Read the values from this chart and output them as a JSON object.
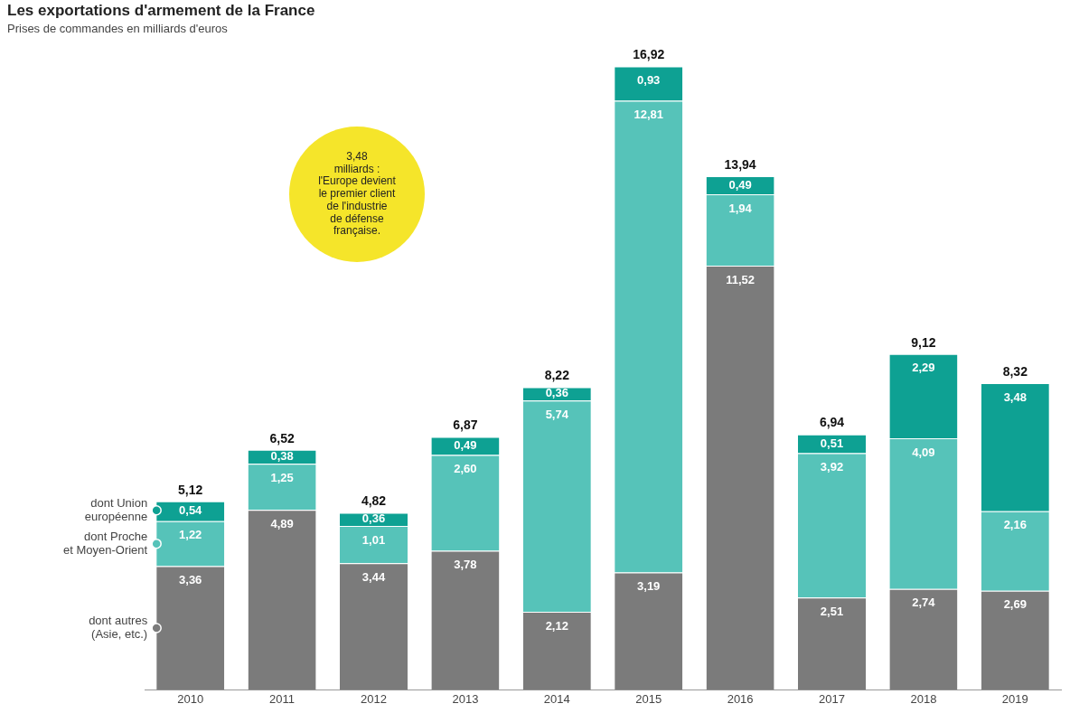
{
  "chart_data": {
    "type": "bar",
    "title": "Les exportations d'armement de la France",
    "subtitle": "Prises de commandes en milliards d'euros",
    "categories": [
      "2010",
      "2011",
      "2012",
      "2013",
      "2014",
      "2015",
      "2016",
      "2017",
      "2018",
      "2019"
    ],
    "stacked": true,
    "legend": "left",
    "grid": false,
    "series": [
      {
        "name": "dont autres\n(Asie, etc.)",
        "color": "#7b7b7b",
        "values": [
          3.36,
          4.89,
          3.44,
          3.78,
          2.12,
          3.19,
          11.52,
          2.51,
          2.74,
          2.69
        ],
        "value_labels": [
          "3,36",
          "4,89",
          "3,44",
          "3,78",
          "2,12",
          "3,19",
          "11,52",
          "2,51",
          "2,74",
          "2,69"
        ]
      },
      {
        "name": "dont Proche\net Moyen-Orient",
        "color": "#56c3b9",
        "values": [
          1.22,
          1.25,
          1.01,
          2.6,
          5.74,
          12.81,
          1.94,
          3.92,
          4.09,
          2.16
        ],
        "value_labels": [
          "1,22",
          "1,25",
          "1,01",
          "2,60",
          "5,74",
          "12,81",
          "1,94",
          "3,92",
          "4,09",
          "2,16"
        ]
      },
      {
        "name": "dont Union\neuropéenne",
        "color": "#0ea193",
        "values": [
          0.54,
          0.38,
          0.36,
          0.49,
          0.36,
          0.93,
          0.49,
          0.51,
          2.29,
          3.48
        ],
        "value_labels": [
          "0,54",
          "0,38",
          "0,36",
          "0,49",
          "0,36",
          "0,93",
          "0,49",
          "0,51",
          "2,29",
          "3,48"
        ]
      }
    ],
    "totals": [
      "5,12",
      "6,52",
      "4,82",
      "6,87",
      "8,22",
      "16,92",
      "13,94",
      "6,94",
      "9,12",
      "8,32"
    ],
    "annotations": [
      "3,48\nmilliards :\nl'Europe devient\nle premier client\nde l'industrie\nde défense\nfrançaise."
    ]
  }
}
